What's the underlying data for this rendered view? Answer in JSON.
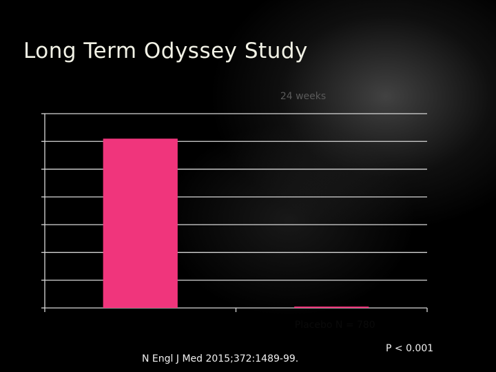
{
  "slide": {
    "title": "Long Term Odyssey Study",
    "citation": "N Engl J Med 2015;372:1489-99.",
    "p_value": "P < 0.001"
  },
  "chart_data": {
    "type": "bar",
    "title": "24 weeks",
    "categories": [
      "",
      "Placebo N = 780"
    ],
    "values": [
      6.1,
      0.05
    ],
    "ylim": [
      0,
      7
    ],
    "grid": true,
    "colors": {
      "bar": "#f0357c",
      "title": "#5a5a5a",
      "grid": "#d9d9d9",
      "label": "#0a0a0a"
    }
  }
}
